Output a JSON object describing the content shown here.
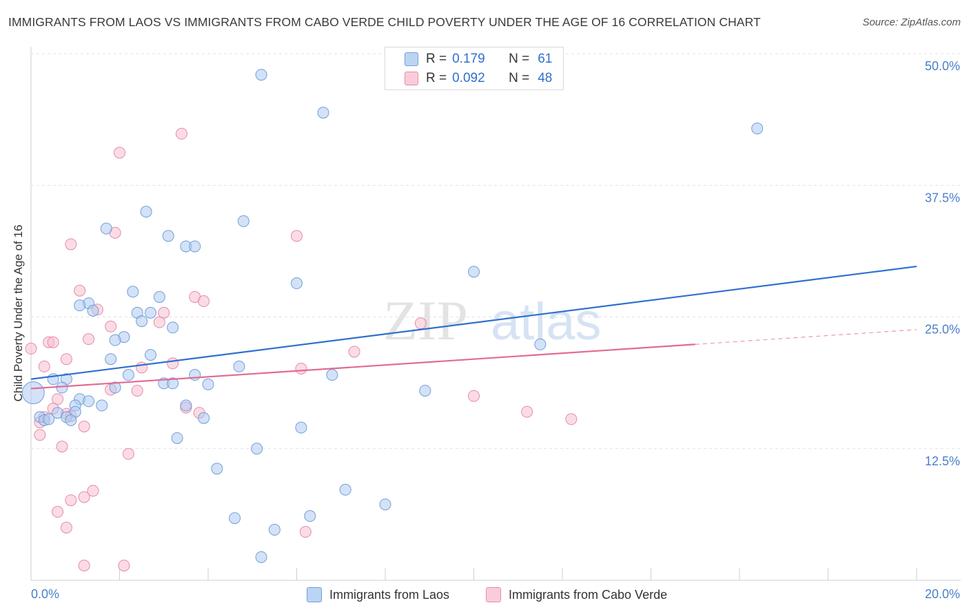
{
  "title": "IMMIGRANTS FROM LAOS VS IMMIGRANTS FROM CABO VERDE CHILD POVERTY UNDER THE AGE OF 16 CORRELATION CHART",
  "source": "Source: ZipAtlas.com",
  "watermark": {
    "zip": "ZIP",
    "atlas": "atlas"
  },
  "legend_top": {
    "rows": [
      {
        "r_label": "R =",
        "r_value": "0.179",
        "n_label": "N =",
        "n_value": "61"
      },
      {
        "r_label": "R =",
        "r_value": "0.092",
        "n_label": "N =",
        "n_value": "48"
      }
    ]
  },
  "colors": {
    "laos_fill": "#aecbf0",
    "laos_stroke": "#6f9fdb",
    "laos_line": "#2f6fcf",
    "cabo_fill": "#f6bfd0",
    "cabo_stroke": "#e88aa8",
    "cabo_line": "#e36a93",
    "axis_label": "#4a7fc9",
    "text_value": "#2f6fcf"
  },
  "chart_data": {
    "type": "scatter",
    "title": "IMMIGRANTS FROM LAOS VS IMMIGRANTS FROM CABO VERDE CHILD POVERTY UNDER THE AGE OF 16 CORRELATION CHART",
    "xlabel": "",
    "ylabel": "Child Poverty Under the Age of 16",
    "xlim": [
      0,
      20
    ],
    "ylim": [
      0,
      50
    ],
    "x_tick_labels": [
      "0.0%",
      "20.0%"
    ],
    "y_tick_labels": [
      "12.5%",
      "25.0%",
      "37.5%",
      "50.0%"
    ],
    "y_ticks": [
      12.5,
      25,
      37.5,
      50
    ],
    "grid": true,
    "legend": "top-center",
    "series": [
      {
        "name": "Immigrants from Laos",
        "r": 0.179,
        "n": 61,
        "trend": {
          "x": [
            0,
            20
          ],
          "y": [
            19.1,
            29.8
          ]
        },
        "points": [
          [
            5.2,
            48.0
          ],
          [
            6.6,
            44.4
          ],
          [
            16.4,
            42.9
          ],
          [
            2.6,
            35.0
          ],
          [
            4.8,
            34.1
          ],
          [
            1.7,
            33.4
          ],
          [
            3.1,
            32.7
          ],
          [
            3.5,
            31.7
          ],
          [
            3.7,
            31.7
          ],
          [
            10.0,
            29.3
          ],
          [
            6.0,
            28.2
          ],
          [
            2.3,
            27.4
          ],
          [
            2.9,
            26.9
          ],
          [
            1.3,
            26.3
          ],
          [
            1.4,
            25.6
          ],
          [
            1.1,
            26.1
          ],
          [
            2.4,
            25.4
          ],
          [
            2.7,
            25.4
          ],
          [
            2.5,
            24.6
          ],
          [
            3.2,
            24.0
          ],
          [
            2.1,
            23.1
          ],
          [
            1.9,
            22.8
          ],
          [
            11.5,
            22.4
          ],
          [
            2.7,
            21.4
          ],
          [
            1.8,
            21.0
          ],
          [
            4.7,
            20.3
          ],
          [
            2.2,
            19.5
          ],
          [
            3.7,
            19.5
          ],
          [
            6.8,
            19.5
          ],
          [
            0.5,
            19.1
          ],
          [
            0.8,
            19.1
          ],
          [
            3.0,
            18.7
          ],
          [
            3.2,
            18.7
          ],
          [
            4.0,
            18.6
          ],
          [
            1.9,
            18.3
          ],
          [
            0.7,
            18.3
          ],
          [
            8.9,
            18.0
          ],
          [
            0.05,
            17.8
          ],
          [
            1.1,
            17.2
          ],
          [
            1.3,
            17.0
          ],
          [
            1.0,
            16.6
          ],
          [
            1.6,
            16.6
          ],
          [
            3.5,
            16.6
          ],
          [
            1.0,
            16.0
          ],
          [
            0.6,
            15.9
          ],
          [
            0.8,
            15.5
          ],
          [
            0.2,
            15.5
          ],
          [
            0.3,
            15.2
          ],
          [
            0.4,
            15.3
          ],
          [
            3.9,
            15.4
          ],
          [
            6.1,
            14.5
          ],
          [
            3.3,
            13.5
          ],
          [
            5.1,
            12.5
          ],
          [
            4.2,
            10.6
          ],
          [
            7.1,
            8.6
          ],
          [
            4.6,
            5.9
          ],
          [
            6.3,
            6.1
          ],
          [
            8.0,
            7.2
          ],
          [
            5.5,
            4.8
          ],
          [
            5.2,
            2.2
          ],
          [
            0.9,
            15.2
          ]
        ]
      },
      {
        "name": "Immigrants from Cabo Verde",
        "r": 0.092,
        "n": 48,
        "trend": {
          "x": [
            0,
            15
          ],
          "y": [
            18.2,
            22.4
          ]
        },
        "trend_dashed": {
          "x": [
            15,
            20
          ],
          "y": [
            22.4,
            23.8
          ]
        },
        "points": [
          [
            3.4,
            42.4
          ],
          [
            2.0,
            40.6
          ],
          [
            1.9,
            33.0
          ],
          [
            6.0,
            32.7
          ],
          [
            0.9,
            31.9
          ],
          [
            1.1,
            27.5
          ],
          [
            3.7,
            26.9
          ],
          [
            3.9,
            26.5
          ],
          [
            1.5,
            25.7
          ],
          [
            3.0,
            25.4
          ],
          [
            2.9,
            24.5
          ],
          [
            1.8,
            24.1
          ],
          [
            8.8,
            24.4
          ],
          [
            0.0,
            22.0
          ],
          [
            0.4,
            22.6
          ],
          [
            0.5,
            22.6
          ],
          [
            1.3,
            22.9
          ],
          [
            7.3,
            21.7
          ],
          [
            0.8,
            21.0
          ],
          [
            3.2,
            20.6
          ],
          [
            0.3,
            20.3
          ],
          [
            6.1,
            20.1
          ],
          [
            2.5,
            20.2
          ],
          [
            1.8,
            18.1
          ],
          [
            2.4,
            18.0
          ],
          [
            0.6,
            17.2
          ],
          [
            10.0,
            17.5
          ],
          [
            0.5,
            16.3
          ],
          [
            3.5,
            16.4
          ],
          [
            3.8,
            15.9
          ],
          [
            11.2,
            16.0
          ],
          [
            0.8,
            15.8
          ],
          [
            0.9,
            15.6
          ],
          [
            12.2,
            15.3
          ],
          [
            0.2,
            15.0
          ],
          [
            0.3,
            15.5
          ],
          [
            1.2,
            14.6
          ],
          [
            0.2,
            13.8
          ],
          [
            0.7,
            12.7
          ],
          [
            2.2,
            12.0
          ],
          [
            1.4,
            8.5
          ],
          [
            1.2,
            7.9
          ],
          [
            0.9,
            7.6
          ],
          [
            0.6,
            6.5
          ],
          [
            0.8,
            5.0
          ],
          [
            6.2,
            4.6
          ],
          [
            1.2,
            1.4
          ],
          [
            2.1,
            1.4
          ]
        ]
      }
    ],
    "big_point": {
      "series": "Immigrants from Laos",
      "x": 0.05,
      "y": 17.8
    }
  },
  "bottom_legend": [
    "Immigrants from Laos",
    "Immigrants from Cabo Verde"
  ]
}
